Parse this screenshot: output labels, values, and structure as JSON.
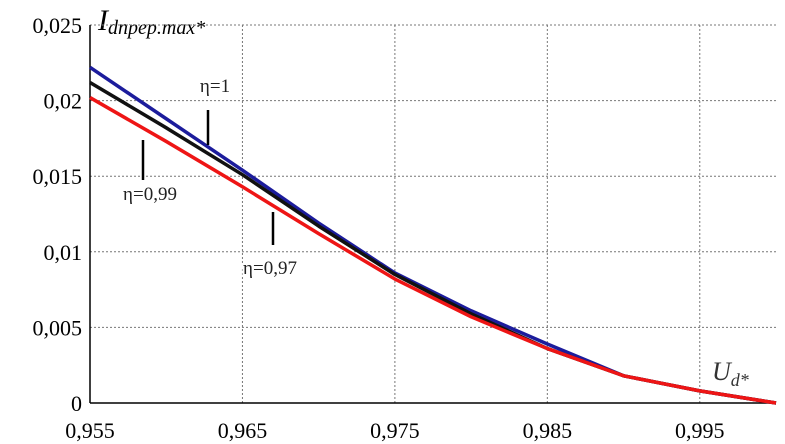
{
  "chart_data": {
    "type": "line",
    "y_label": "I",
    "y_label_sub": "dпреp.max*",
    "x_label": "U",
    "x_label_sub": "d*",
    "x": [
      0.955,
      0.96,
      0.965,
      0.97,
      0.975,
      0.98,
      0.985,
      0.99,
      0.995,
      1.0
    ],
    "series": [
      {
        "name": "η=1",
        "color": "#1c1c9c",
        "values": [
          0.0222,
          0.0188,
          0.0154,
          0.0119,
          0.0086,
          0.0061,
          0.0039,
          0.0018,
          0.0008,
          0
        ]
      },
      {
        "name": "η=0,99",
        "color": "#111111",
        "values": [
          0.0212,
          0.0182,
          0.0151,
          0.0117,
          0.0085,
          0.0059,
          0.0036,
          0.0018,
          0.0008,
          0
        ]
      },
      {
        "name": "η=0,97",
        "color": "#ee1515",
        "values": [
          0.0202,
          0.0173,
          0.0143,
          0.0112,
          0.0082,
          0.0057,
          0.0036,
          0.0018,
          0.0008,
          0
        ]
      }
    ],
    "xlim": [
      0.955,
      1.0
    ],
    "ylim": [
      0,
      0.025
    ],
    "xticks": [
      {
        "value": 0.955,
        "label": "0,955"
      },
      {
        "value": 0.965,
        "label": "0,965"
      },
      {
        "value": 0.975,
        "label": "0,975"
      },
      {
        "value": 0.985,
        "label": "0,985"
      },
      {
        "value": 0.995,
        "label": "0,995"
      }
    ],
    "yticks": [
      0,
      {
        "value": 0.005,
        "label": "0,005"
      },
      {
        "value": 0.01,
        "label": "0,01"
      },
      {
        "value": 0.015,
        "label": "0,015"
      },
      {
        "value": 0.02,
        "label": "0,02"
      },
      {
        "value": 0.025,
        "label": "0,025"
      }
    ],
    "grid": true
  }
}
